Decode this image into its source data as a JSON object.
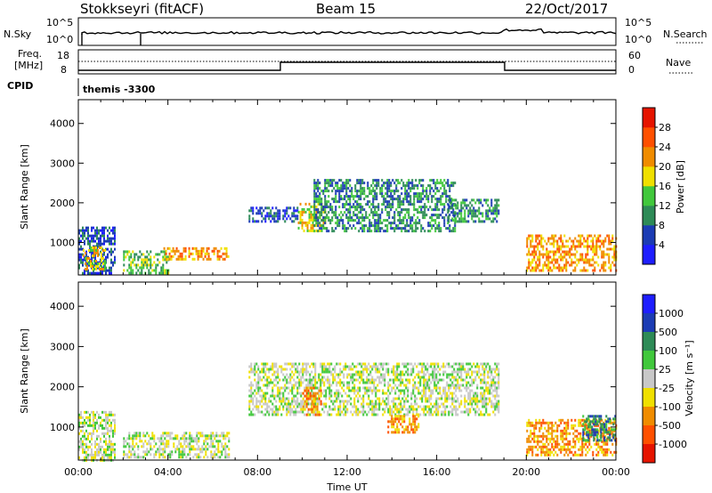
{
  "header": {
    "radar_title": "Stokkseyri (fitACF)",
    "beam_title": "Beam 15",
    "date_title": "22/Oct/2017"
  },
  "top_panel": {
    "left_label": "N.Sky",
    "left_top_tick": "10^5",
    "left_bottom_tick": "10^0",
    "right_label": "N.Search",
    "right_top_tick": "10^5",
    "right_bottom_tick": "10^0"
  },
  "freq_panel": {
    "left_label_1": "Freq.",
    "left_label_2": "[MHz]",
    "left_top_tick": "18",
    "left_bottom_tick": "8",
    "right_label": "Nave",
    "right_top_tick": "60",
    "right_bottom_tick": "0"
  },
  "cpid": {
    "label": "CPID",
    "value": "themis -3300"
  },
  "chart_data": [
    {
      "type": "heatmap",
      "panel": "power",
      "ylabel": "Slant Range [km]",
      "ylim": [
        180,
        4600
      ],
      "yticks": [
        "1000",
        "2000",
        "3000",
        "4000"
      ],
      "xlim_hours": [
        0,
        24
      ],
      "xticks": [
        "00:00",
        "04:00",
        "08:00",
        "12:00",
        "16:00",
        "20:00",
        "00:00"
      ],
      "colorbar_label": "Power [dB]",
      "colorbar_ticks": [
        "4",
        "8",
        "12",
        "16",
        "20",
        "24",
        "28"
      ],
      "colorbar_colors": [
        "#1E1EFF",
        "#1C3CB4",
        "#2E8B57",
        "#41C83C",
        "#F0E000",
        "#F08C00",
        "#FF5000",
        "#E61400"
      ],
      "echo_regions": [
        {
          "t0": 0.0,
          "t1": 1.6,
          "r0": 200,
          "r1": 1400,
          "level": 1
        },
        {
          "t0": 0.2,
          "t1": 1.2,
          "r0": 300,
          "r1": 900,
          "level": 4
        },
        {
          "t0": 2.0,
          "t1": 4.0,
          "r0": 220,
          "r1": 800,
          "level": 3
        },
        {
          "t0": 3.8,
          "t1": 6.7,
          "r0": 560,
          "r1": 880,
          "level": 5
        },
        {
          "t0": 7.6,
          "t1": 9.8,
          "r0": 1500,
          "r1": 1900,
          "level": 1
        },
        {
          "t0": 9.8,
          "t1": 11.0,
          "r0": 1300,
          "r1": 2000,
          "level": 4
        },
        {
          "t0": 10.5,
          "t1": 16.8,
          "r0": 1300,
          "r1": 2600,
          "level": 2
        },
        {
          "t0": 16.5,
          "t1": 18.8,
          "r0": 1500,
          "r1": 2100,
          "level": 2
        },
        {
          "t0": 20.0,
          "t1": 24.0,
          "r0": 300,
          "r1": 1200,
          "level": 5
        }
      ]
    },
    {
      "type": "heatmap",
      "panel": "velocity",
      "ylabel": "Slant Range [km]",
      "ylim": [
        180,
        4600
      ],
      "yticks": [
        "1000",
        "2000",
        "3000",
        "4000"
      ],
      "xlim_hours": [
        0,
        24
      ],
      "xticks": [
        "00:00",
        "04:00",
        "08:00",
        "12:00",
        "16:00",
        "20:00",
        "00:00"
      ],
      "xlabel": "Time UT",
      "colorbar_label": "Velocity [m s⁻¹]",
      "colorbar_ticks": [
        "1000",
        "500",
        "100",
        "25",
        "-25",
        "-100",
        "-500",
        "-1000"
      ],
      "colorbar_colors": [
        "#1E1EFF",
        "#1C3CB4",
        "#2E8B57",
        "#41C83C",
        "#C8C8C8",
        "#F0E000",
        "#F08C00",
        "#FF5000",
        "#E61400"
      ],
      "echo_regions": [
        {
          "t0": 0.0,
          "t1": 1.6,
          "r0": 200,
          "r1": 1400,
          "level": 4
        },
        {
          "t0": 2.0,
          "t1": 6.7,
          "r0": 220,
          "r1": 880,
          "level": 4
        },
        {
          "t0": 7.6,
          "t1": 18.8,
          "r0": 1300,
          "r1": 2600,
          "level": 4
        },
        {
          "t0": 10.0,
          "t1": 10.8,
          "r0": 1300,
          "r1": 2000,
          "level": 6
        },
        {
          "t0": 13.8,
          "t1": 15.2,
          "r0": 900,
          "r1": 1300,
          "level": 6
        },
        {
          "t0": 20.0,
          "t1": 24.0,
          "r0": 300,
          "r1": 1200,
          "level": 6
        },
        {
          "t0": 22.5,
          "t1": 24.0,
          "r0": 700,
          "r1": 1300,
          "level": 2
        }
      ]
    }
  ]
}
